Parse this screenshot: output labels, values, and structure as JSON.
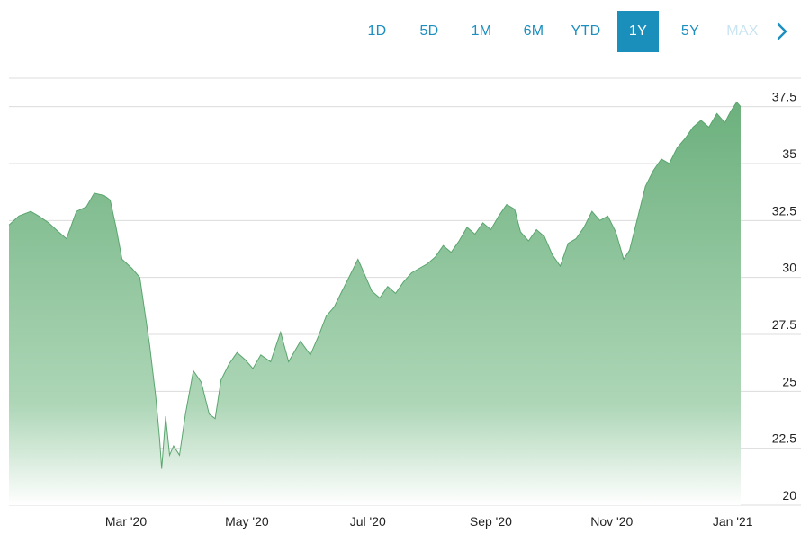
{
  "range_selector": {
    "options": [
      "1D",
      "5D",
      "1M",
      "6M",
      "YTD",
      "1Y",
      "5Y",
      "MAX"
    ],
    "selected": "1Y",
    "next_icon": "chevron-right-icon"
  },
  "colors": {
    "accent": "#1b8fbc",
    "area_top": "#6cb07d",
    "area_bottom": "#ffffff",
    "grid": "#dcdcdc"
  },
  "chart_data": {
    "type": "area",
    "title": "",
    "xlabel": "",
    "ylabel": "",
    "ylim": [
      20,
      38.75
    ],
    "y_ticks": [
      "20",
      "22.5",
      "25",
      "27.5",
      "30",
      "32.5",
      "35",
      "37.5"
    ],
    "x_ticks": [
      {
        "label": "Mar '20",
        "date": "2020-03-01"
      },
      {
        "label": "May '20",
        "date": "2020-05-01"
      },
      {
        "label": "Jul '20",
        "date": "2020-07-01"
      },
      {
        "label": "Sep '20",
        "date": "2020-09-01"
      },
      {
        "label": "Nov '20",
        "date": "2020-11-01"
      },
      {
        "label": "Jan '21",
        "date": "2021-01-01"
      }
    ],
    "grid": true,
    "series": [
      {
        "points": [
          [
            "2020-01-02",
            32.3
          ],
          [
            "2020-01-07",
            32.7
          ],
          [
            "2020-01-13",
            32.9
          ],
          [
            "2020-01-17",
            32.7
          ],
          [
            "2020-01-22",
            32.4
          ],
          [
            "2020-01-27",
            32.0
          ],
          [
            "2020-01-31",
            31.7
          ],
          [
            "2020-02-05",
            32.9
          ],
          [
            "2020-02-10",
            33.1
          ],
          [
            "2020-02-14",
            33.7
          ],
          [
            "2020-02-19",
            33.6
          ],
          [
            "2020-02-22",
            33.4
          ],
          [
            "2020-02-25",
            32.2
          ],
          [
            "2020-02-28",
            30.8
          ],
          [
            "2020-03-04",
            30.4
          ],
          [
            "2020-03-08",
            30.0
          ],
          [
            "2020-03-11",
            28.2
          ],
          [
            "2020-03-13",
            27.0
          ],
          [
            "2020-03-16",
            24.8
          ],
          [
            "2020-03-18",
            22.9
          ],
          [
            "2020-03-19",
            21.6
          ],
          [
            "2020-03-21",
            23.9
          ],
          [
            "2020-03-23",
            22.2
          ],
          [
            "2020-03-25",
            22.6
          ],
          [
            "2020-03-28",
            22.2
          ],
          [
            "2020-03-31",
            24.0
          ],
          [
            "2020-04-04",
            25.9
          ],
          [
            "2020-04-08",
            25.4
          ],
          [
            "2020-04-12",
            24.0
          ],
          [
            "2020-04-15",
            23.8
          ],
          [
            "2020-04-18",
            25.5
          ],
          [
            "2020-04-22",
            26.2
          ],
          [
            "2020-04-26",
            26.7
          ],
          [
            "2020-04-30",
            26.4
          ],
          [
            "2020-05-04",
            26.0
          ],
          [
            "2020-05-08",
            26.6
          ],
          [
            "2020-05-13",
            26.3
          ],
          [
            "2020-05-18",
            27.6
          ],
          [
            "2020-05-22",
            26.3
          ],
          [
            "2020-05-28",
            27.2
          ],
          [
            "2020-06-02",
            26.6
          ],
          [
            "2020-06-06",
            27.4
          ],
          [
            "2020-06-10",
            28.3
          ],
          [
            "2020-06-14",
            28.7
          ],
          [
            "2020-06-18",
            29.4
          ],
          [
            "2020-06-22",
            30.1
          ],
          [
            "2020-06-26",
            30.8
          ],
          [
            "2020-06-29",
            30.2
          ],
          [
            "2020-07-03",
            29.4
          ],
          [
            "2020-07-07",
            29.1
          ],
          [
            "2020-07-11",
            29.6
          ],
          [
            "2020-07-15",
            29.3
          ],
          [
            "2020-07-19",
            29.8
          ],
          [
            "2020-07-23",
            30.2
          ],
          [
            "2020-07-27",
            30.4
          ],
          [
            "2020-07-31",
            30.6
          ],
          [
            "2020-08-04",
            30.9
          ],
          [
            "2020-08-08",
            31.4
          ],
          [
            "2020-08-12",
            31.1
          ],
          [
            "2020-08-16",
            31.6
          ],
          [
            "2020-08-20",
            32.2
          ],
          [
            "2020-08-24",
            31.9
          ],
          [
            "2020-08-28",
            32.4
          ],
          [
            "2020-09-01",
            32.1
          ],
          [
            "2020-09-05",
            32.7
          ],
          [
            "2020-09-09",
            33.2
          ],
          [
            "2020-09-13",
            33.0
          ],
          [
            "2020-09-16",
            32.0
          ],
          [
            "2020-09-20",
            31.6
          ],
          [
            "2020-09-24",
            32.1
          ],
          [
            "2020-09-28",
            31.8
          ],
          [
            "2020-10-02",
            31.0
          ],
          [
            "2020-10-06",
            30.5
          ],
          [
            "2020-10-10",
            31.5
          ],
          [
            "2020-10-14",
            31.7
          ],
          [
            "2020-10-18",
            32.2
          ],
          [
            "2020-10-22",
            32.9
          ],
          [
            "2020-10-26",
            32.5
          ],
          [
            "2020-10-30",
            32.7
          ],
          [
            "2020-11-03",
            32.0
          ],
          [
            "2020-11-07",
            30.8
          ],
          [
            "2020-11-10",
            31.2
          ],
          [
            "2020-11-14",
            32.6
          ],
          [
            "2020-11-18",
            34.0
          ],
          [
            "2020-11-22",
            34.7
          ],
          [
            "2020-11-26",
            35.2
          ],
          [
            "2020-11-30",
            35.0
          ],
          [
            "2020-12-04",
            35.7
          ],
          [
            "2020-12-08",
            36.1
          ],
          [
            "2020-12-12",
            36.6
          ],
          [
            "2020-12-16",
            36.9
          ],
          [
            "2020-12-20",
            36.6
          ],
          [
            "2020-12-24",
            37.2
          ],
          [
            "2020-12-28",
            36.8
          ],
          [
            "2020-12-31",
            37.3
          ],
          [
            "2021-01-03",
            37.7
          ],
          [
            "2021-01-05",
            37.5
          ]
        ]
      }
    ]
  }
}
